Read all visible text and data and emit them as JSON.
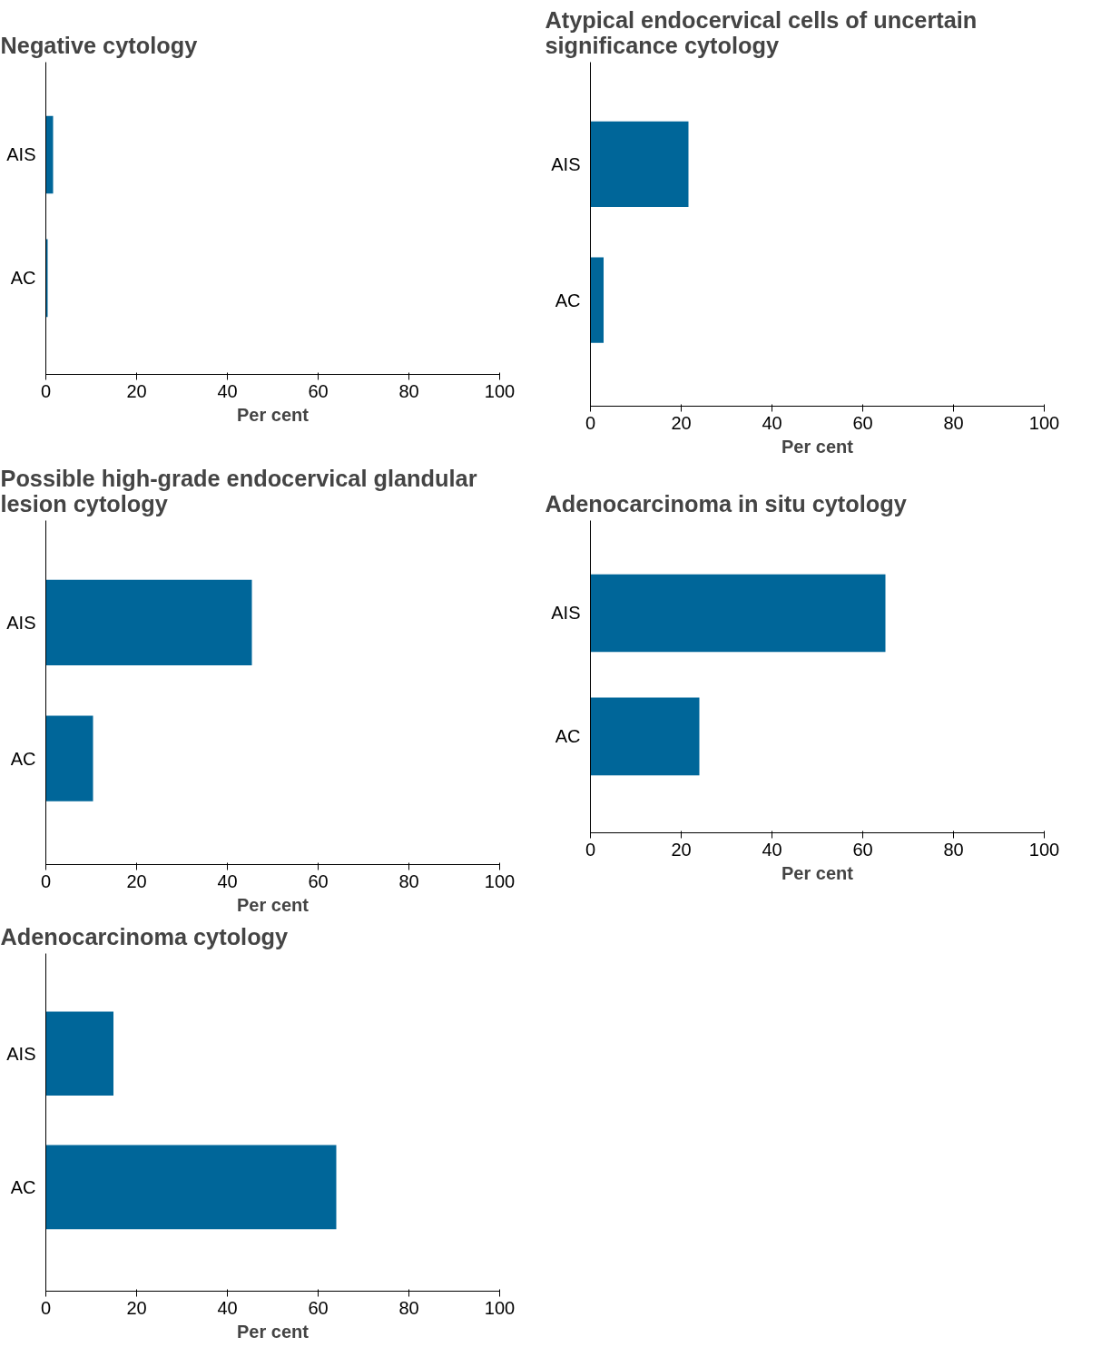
{
  "chart_data": [
    {
      "type": "bar",
      "orientation": "horizontal",
      "title": "Negative cytology",
      "xlabel": "Per cent",
      "categories": [
        "AIS",
        "AC"
      ],
      "values": [
        1.6,
        0.4
      ],
      "color": "#006699",
      "xlim": [
        0,
        100
      ],
      "xticks": [
        0,
        20,
        40,
        60,
        80,
        100
      ],
      "grid": false,
      "legend": false
    },
    {
      "type": "bar",
      "orientation": "horizontal",
      "title": "Atypical endocervical cells of uncertain significance cytology",
      "xlabel": "Per cent",
      "categories": [
        "AIS",
        "AC"
      ],
      "values": [
        21.6,
        2.9
      ],
      "color": "#006699",
      "xlim": [
        0,
        100
      ],
      "xticks": [
        0,
        20,
        40,
        60,
        80,
        100
      ],
      "grid": false,
      "legend": false
    },
    {
      "type": "bar",
      "orientation": "horizontal",
      "title": "Possible high-grade endocervical glandular lesion cytology",
      "xlabel": "Per cent",
      "categories": [
        "AIS",
        "AC"
      ],
      "values": [
        45.4,
        10.4
      ],
      "color": "#006699",
      "xlim": [
        0,
        100
      ],
      "xticks": [
        0,
        20,
        40,
        60,
        80,
        100
      ],
      "grid": false,
      "legend": false
    },
    {
      "type": "bar",
      "orientation": "horizontal",
      "title": "Adenocarcinoma in situ cytology",
      "xlabel": "Per cent",
      "categories": [
        "AIS",
        "AC"
      ],
      "values": [
        65.0,
        24.0
      ],
      "color": "#006699",
      "xlim": [
        0,
        100
      ],
      "xticks": [
        0,
        20,
        40,
        60,
        80,
        100
      ],
      "grid": false,
      "legend": false
    },
    {
      "type": "bar",
      "orientation": "horizontal",
      "title": "Adenocarcinoma cytology",
      "xlabel": "Per cent",
      "categories": [
        "AIS",
        "AC"
      ],
      "values": [
        14.9,
        64.0
      ],
      "color": "#006699",
      "xlim": [
        0,
        100
      ],
      "xticks": [
        0,
        20,
        40,
        60,
        80,
        100
      ],
      "grid": false,
      "legend": false
    }
  ]
}
